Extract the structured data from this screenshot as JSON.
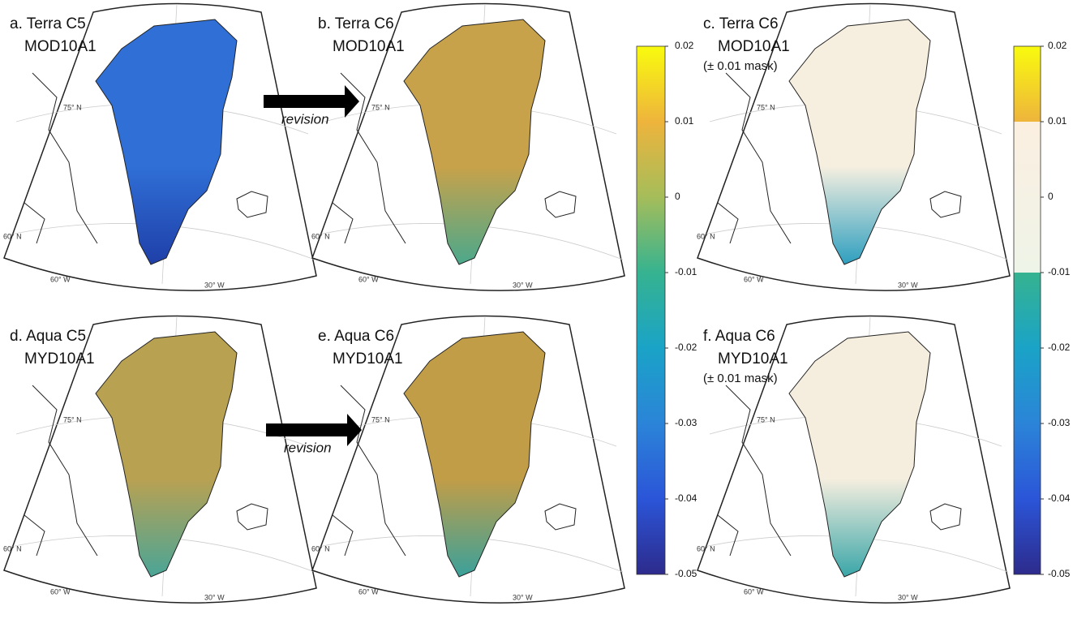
{
  "panels": [
    {
      "label": "a.  Terra C5",
      "product": "MOD10A1",
      "graticule": [
        "75° N",
        "60° N",
        "60° W",
        "30° W"
      ]
    },
    {
      "label": "b.  Terra C6",
      "product": "MOD10A1",
      "graticule": [
        "75° N",
        "60° N",
        "60° W",
        "30° W"
      ]
    },
    {
      "label": "c.  Terra C6",
      "product": "MOD10A1",
      "note": "(± 0.01 mask)",
      "graticule": [
        "75° N",
        "60° N",
        "60° W",
        "30° W"
      ]
    },
    {
      "label": "d.   Aqua C5",
      "product": "MYD10A1",
      "graticule": [
        "75° N",
        "60° N",
        "60° W",
        "30° W"
      ]
    },
    {
      "label": "e.  Aqua C6",
      "product": "MYD10A1",
      "graticule": [
        "75° N",
        "60° N",
        "60° W",
        "30° W"
      ]
    },
    {
      "label": "f.  Aqua C6",
      "product": "MYD10A1",
      "note": "(± 0.01 mask)",
      "graticule": [
        "75° N",
        "60° N",
        "60° W",
        "30° W"
      ]
    }
  ],
  "arrows": [
    {
      "label": "revision"
    },
    {
      "label": "revision"
    }
  ],
  "colorbars": [
    {
      "lim": [
        -0.05,
        0.02
      ],
      "ticks": [
        0.02,
        0.01,
        0,
        -0.01,
        -0.02,
        -0.03,
        -0.04,
        -0.05
      ]
    },
    {
      "lim": [
        -0.05,
        0.02
      ],
      "ticks": [
        0.02,
        0.01,
        0,
        -0.01,
        -0.02,
        -0.03,
        -0.04,
        -0.05
      ],
      "mask": [
        -0.01,
        0.01
      ]
    }
  ]
}
